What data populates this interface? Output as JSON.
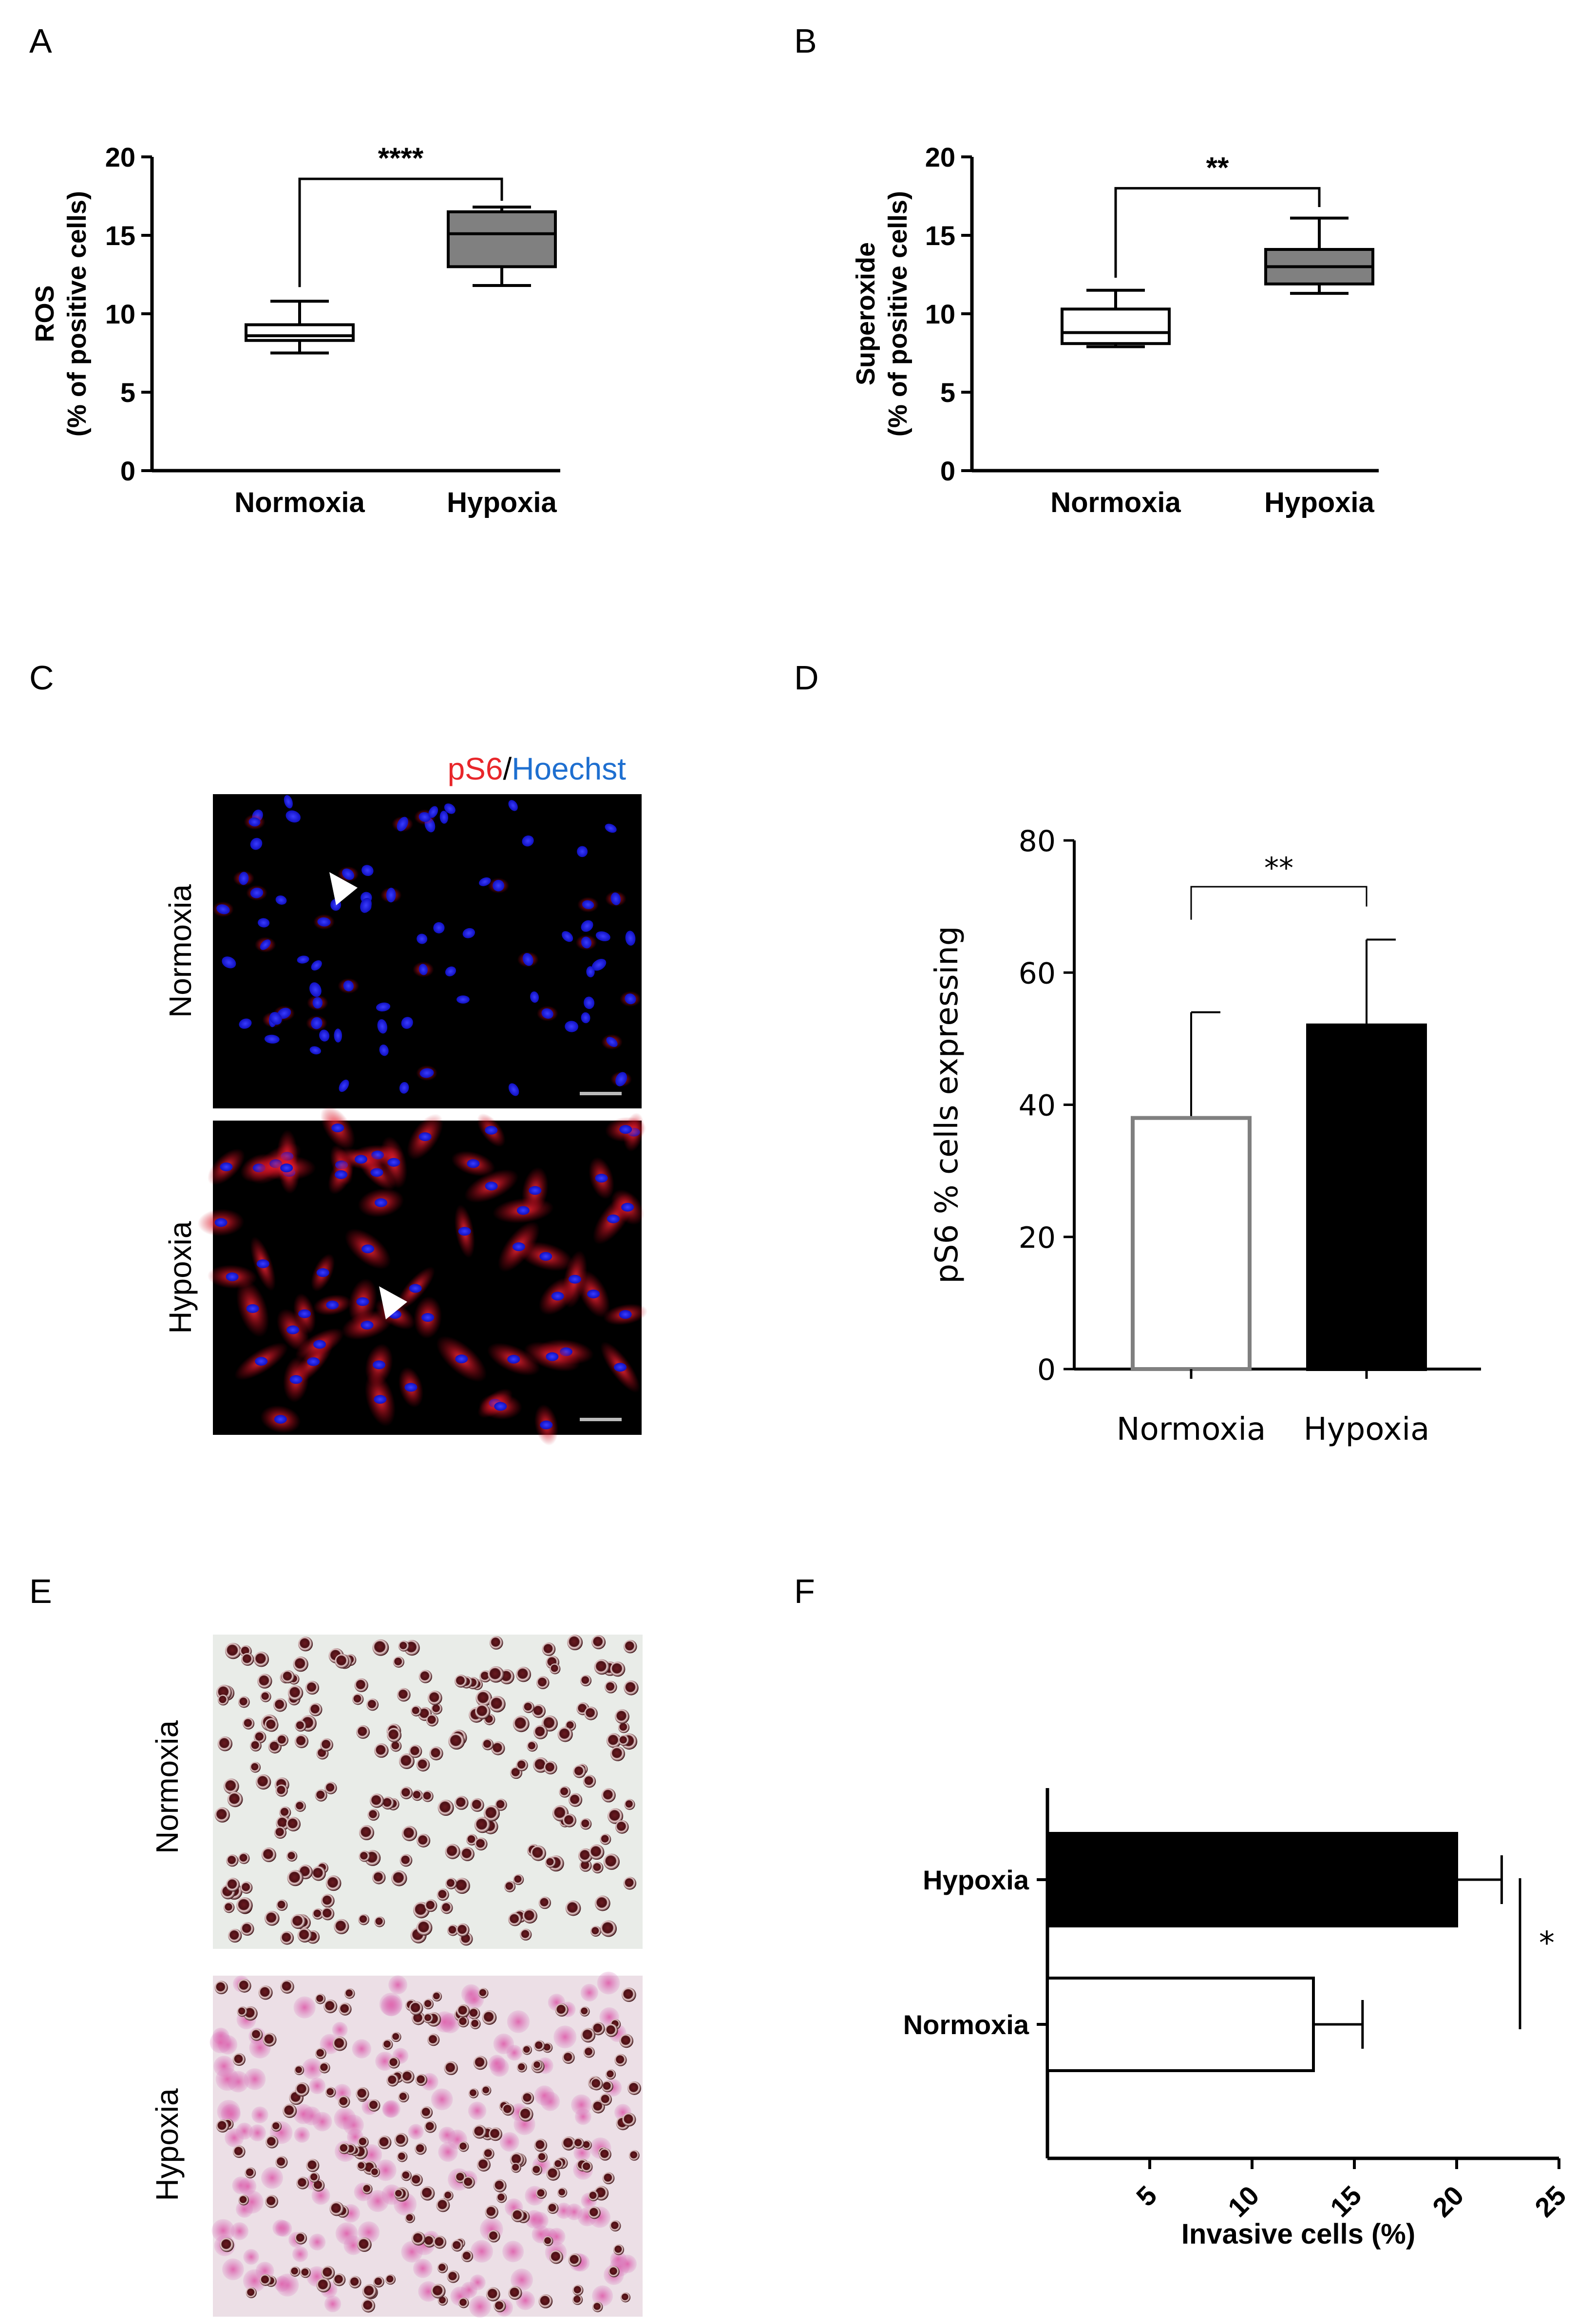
{
  "panels": {
    "A": "A",
    "B": "B",
    "C": "C",
    "D": "D",
    "E": "E",
    "F": "F"
  },
  "colors": {
    "normoxia_box": "#ffffff",
    "hypoxia_box": "#808080",
    "hypoxia_bar": "#000000",
    "pS6_label": "#e8262a",
    "hoechst_label": "#1e6fd0",
    "axis": "#000000"
  },
  "micrographs": {
    "C": {
      "stain_label_1": "pS6",
      "stain_sep": "/",
      "stain_label_2": "Hoechst",
      "row_labels": [
        "Normoxia",
        "Hypoxia"
      ],
      "description_icons": [
        "arrowhead-icon",
        "scale-bar-icon"
      ]
    },
    "E": {
      "row_labels": [
        "Normoxia",
        "Hypoxia"
      ]
    }
  },
  "chart_data": [
    {
      "panel": "A",
      "type": "box",
      "categories": [
        "Normoxia",
        "Hypoxia"
      ],
      "ylabel_line1": "ROS",
      "ylabel_line2": "(% of positive cells)",
      "ylim": [
        0,
        20
      ],
      "yticks": [
        "0",
        "5",
        "10",
        "15",
        "20"
      ],
      "boxes": [
        {
          "name": "Normoxia",
          "min": 7.5,
          "q1": 8.3,
          "median": 8.6,
          "q3": 9.3,
          "max": 10.8
        },
        {
          "name": "Hypoxia",
          "min": 11.8,
          "q1": 13.0,
          "median": 15.1,
          "q3": 16.5,
          "max": 16.8
        }
      ],
      "significance": "****"
    },
    {
      "panel": "B",
      "type": "box",
      "categories": [
        "Normoxia",
        "Hypoxia"
      ],
      "ylabel_line1": "Superoxide",
      "ylabel_line2": "(% of positive cells)",
      "ylim": [
        0,
        20
      ],
      "yticks": [
        "0",
        "5",
        "10",
        "15",
        "20"
      ],
      "boxes": [
        {
          "name": "Normoxia",
          "min": 7.9,
          "q1": 8.1,
          "median": 8.8,
          "q3": 10.3,
          "max": 11.5
        },
        {
          "name": "Hypoxia",
          "min": 11.3,
          "q1": 11.9,
          "median": 13.0,
          "q3": 14.1,
          "max": 16.1
        }
      ],
      "significance": "**"
    },
    {
      "panel": "D",
      "type": "bar",
      "categories": [
        "Normoxia",
        "Hypoxia"
      ],
      "values": [
        38,
        52
      ],
      "errors": [
        16,
        13
      ],
      "ylabel": "pS6 % cells expressing",
      "ylim": [
        0,
        80
      ],
      "yticks": [
        "0",
        "20",
        "40",
        "60",
        "80"
      ],
      "significance": "**"
    },
    {
      "panel": "F",
      "type": "bar",
      "orientation": "horizontal",
      "categories": [
        "Hypoxia",
        "Normoxia"
      ],
      "values": [
        20,
        13
      ],
      "errors": [
        2.2,
        2.4
      ],
      "xlabel": "Invasive cells (%)",
      "xlim": [
        0,
        25
      ],
      "xticks": [
        "5",
        "10",
        "15",
        "20",
        "25"
      ],
      "significance": "*"
    }
  ]
}
